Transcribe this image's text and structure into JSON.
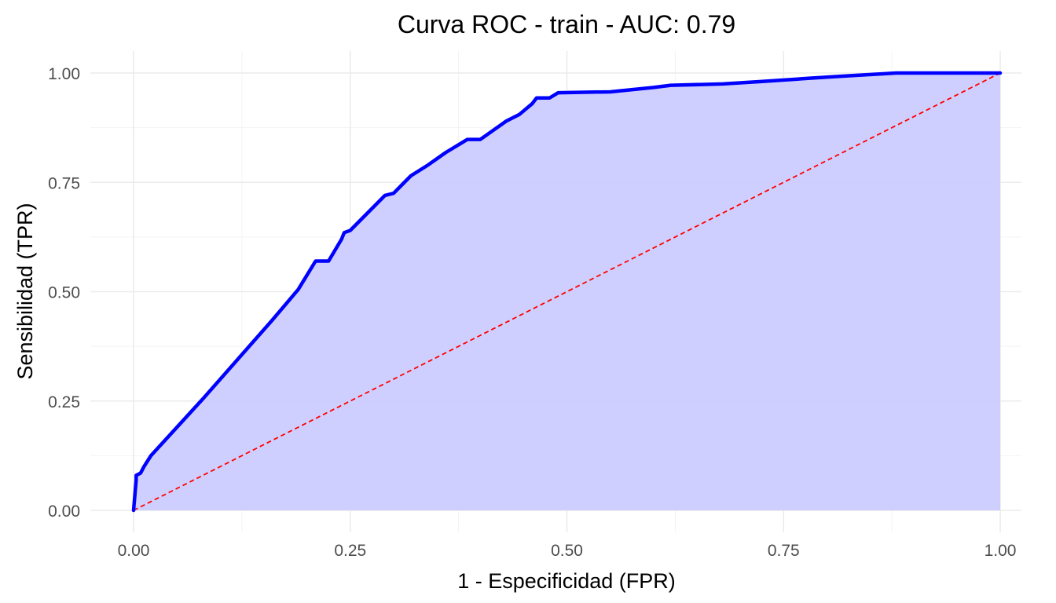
{
  "chart_data": {
    "type": "area",
    "title": "Curva ROC - train - AUC: 0.79",
    "xlabel": "1 - Especificidad (FPR)",
    "ylabel": "Sensibilidad (TPR)",
    "xlim": [
      0,
      1
    ],
    "ylim": [
      0,
      1
    ],
    "x_ticks": [
      0,
      0.25,
      0.5,
      0.75,
      1
    ],
    "x_tick_labels": [
      "0.00",
      "0.25",
      "0.50",
      "0.75",
      "1.00"
    ],
    "y_ticks": [
      0,
      0.25,
      0.5,
      0.75,
      1
    ],
    "y_tick_labels": [
      "0.00",
      "0.25",
      "0.50",
      "0.75",
      "1.00"
    ],
    "grid": true,
    "colors": {
      "roc_line": "#0000ff",
      "roc_fill": "#ccccff",
      "reference_line": "#ff0000"
    },
    "series": [
      {
        "style": "solid",
        "x": [
          0,
          0.003,
          0.003,
          0.008,
          0.012,
          0.02,
          0.05,
          0.08,
          0.12,
          0.16,
          0.19,
          0.21,
          0.225,
          0.24,
          0.243,
          0.25,
          0.27,
          0.29,
          0.3,
          0.32,
          0.34,
          0.36,
          0.385,
          0.4,
          0.43,
          0.445,
          0.46,
          0.465,
          0.48,
          0.49,
          0.55,
          0.6,
          0.62,
          0.68,
          0.72,
          0.78,
          0.82,
          0.88,
          0.9,
          1.0
        ],
        "y": [
          0,
          0.07,
          0.08,
          0.085,
          0.1,
          0.125,
          0.19,
          0.255,
          0.345,
          0.435,
          0.505,
          0.57,
          0.57,
          0.62,
          0.635,
          0.64,
          0.68,
          0.72,
          0.725,
          0.765,
          0.79,
          0.818,
          0.848,
          0.848,
          0.89,
          0.905,
          0.93,
          0.943,
          0.943,
          0.955,
          0.957,
          0.967,
          0.972,
          0.975,
          0.98,
          0.988,
          0.993,
          1.0,
          1.0,
          1.0
        ]
      },
      {
        "style": "dashed",
        "x": [
          0,
          1
        ],
        "y": [
          0,
          1
        ]
      }
    ]
  }
}
